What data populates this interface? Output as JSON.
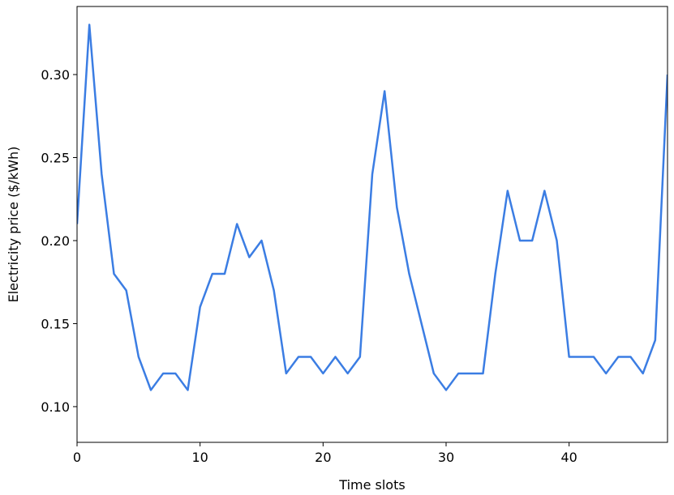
{
  "chart_data": {
    "type": "line",
    "xlabel": "Time slots",
    "ylabel": "Electricity price ($/kWh)",
    "x": [
      0,
      1,
      2,
      3,
      4,
      5,
      6,
      7,
      8,
      9,
      10,
      11,
      12,
      13,
      14,
      15,
      16,
      17,
      18,
      19,
      20,
      21,
      22,
      23,
      24,
      25,
      26,
      27,
      28,
      29,
      30,
      31,
      32,
      33,
      34,
      35,
      36,
      37,
      38,
      39,
      40,
      41,
      42,
      43,
      44,
      45,
      46,
      47,
      48
    ],
    "values": [
      0.21,
      0.33,
      0.24,
      0.18,
      0.17,
      0.13,
      0.11,
      0.12,
      0.12,
      0.11,
      0.16,
      0.18,
      0.18,
      0.21,
      0.19,
      0.2,
      0.17,
      0.12,
      0.13,
      0.13,
      0.12,
      0.13,
      0.12,
      0.13,
      0.24,
      0.29,
      0.22,
      0.18,
      0.15,
      0.12,
      0.11,
      0.12,
      0.12,
      0.12,
      0.18,
      0.23,
      0.2,
      0.2,
      0.23,
      0.2,
      0.13,
      0.13,
      0.13,
      0.12,
      0.13,
      0.13,
      0.12,
      0.14,
      0.3
    ],
    "color": "#3b7de3",
    "xlim": [
      0,
      48
    ],
    "xticks": [
      0,
      10,
      20,
      30,
      40
    ],
    "ylim": [
      0.0785,
      0.341
    ],
    "yticks": [
      {
        "value": 0.1,
        "label": "0.10"
      },
      0.15,
      {
        "value": 0.2,
        "label": "0.20"
      },
      0.25,
      {
        "value": 0.3,
        "label": "0.30"
      }
    ],
    "grid": false
  }
}
